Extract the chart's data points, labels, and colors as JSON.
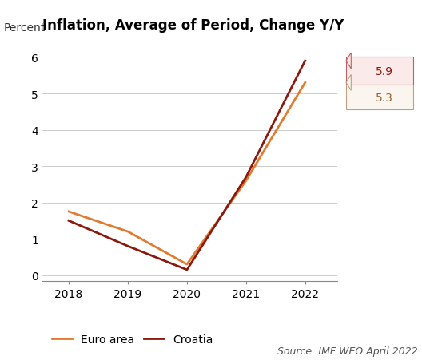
{
  "title": "Inflation, Average of Period, Change Y/Y",
  "ylabel": "Percent",
  "source": "Source: IMF WEO April 2022",
  "years": [
    2018,
    2019,
    2020,
    2021,
    2022
  ],
  "euro_area": [
    1.75,
    1.2,
    0.3,
    2.6,
    5.3
  ],
  "croatia": [
    1.5,
    0.8,
    0.15,
    2.7,
    5.9
  ],
  "euro_area_color": "#E07B30",
  "croatia_color": "#8B1A0E",
  "euro_area_label": "Euro area",
  "croatia_label": "Croatia",
  "ylim": [
    -0.15,
    6.4
  ],
  "yticks": [
    0,
    1,
    2,
    3,
    4,
    5,
    6
  ],
  "xlim": [
    2017.55,
    2022.55
  ],
  "label_euro_area": "5.3",
  "label_croatia": "5.9",
  "bg_color": "#FFFFFF",
  "title_fontsize": 12,
  "axis_fontsize": 10,
  "legend_fontsize": 10,
  "source_fontsize": 9
}
